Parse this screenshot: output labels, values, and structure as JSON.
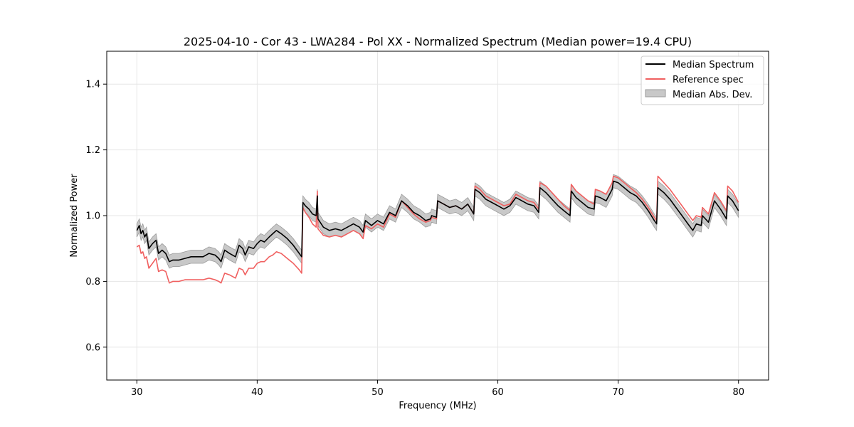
{
  "chart_data": {
    "type": "line",
    "title": "2025-04-10 - Cor 43 - LWA284 - Pol XX - Normalized Spectrum (Median power=19.4 CPU)",
    "xlabel": "Frequency (MHz)",
    "ylabel": "Normalized Power",
    "xlim": [
      27.5,
      82.5
    ],
    "ylim": [
      0.5,
      1.5
    ],
    "xticks": [
      30,
      40,
      50,
      60,
      70,
      80
    ],
    "yticks": [
      0.6,
      0.8,
      1.0,
      1.2,
      1.4
    ],
    "xtick_labels": [
      "30",
      "40",
      "50",
      "60",
      "70",
      "80"
    ],
    "ytick_labels": [
      "0.6",
      "0.8",
      "1.0",
      "1.2",
      "1.4"
    ],
    "grid": true,
    "legend_position": "top-right",
    "legend": [
      "Median Spectrum",
      "Reference spec",
      "Median Abs. Dev."
    ],
    "colors": {
      "median": "#000000",
      "reference": "#f06060",
      "mad_fill": "#c8c8c8",
      "mad_edge": "#9a9a9a",
      "grid": "#e6e6e6"
    },
    "series": [
      {
        "name": "Median Spectrum",
        "points": [
          [
            30.0,
            0.955
          ],
          [
            30.2,
            0.97
          ],
          [
            30.35,
            0.945
          ],
          [
            30.5,
            0.955
          ],
          [
            30.65,
            0.935
          ],
          [
            30.8,
            0.945
          ],
          [
            31.0,
            0.9
          ],
          [
            31.3,
            0.915
          ],
          [
            31.6,
            0.925
          ],
          [
            31.8,
            0.885
          ],
          [
            32.1,
            0.895
          ],
          [
            32.4,
            0.885
          ],
          [
            32.7,
            0.86
          ],
          [
            33.0,
            0.865
          ],
          [
            33.5,
            0.865
          ],
          [
            34.0,
            0.87
          ],
          [
            34.5,
            0.875
          ],
          [
            35.0,
            0.875
          ],
          [
            35.5,
            0.875
          ],
          [
            36.0,
            0.885
          ],
          [
            36.5,
            0.88
          ],
          [
            36.8,
            0.87
          ],
          [
            37.0,
            0.86
          ],
          [
            37.3,
            0.895
          ],
          [
            37.7,
            0.885
          ],
          [
            38.2,
            0.875
          ],
          [
            38.5,
            0.91
          ],
          [
            38.8,
            0.9
          ],
          [
            39.0,
            0.88
          ],
          [
            39.3,
            0.905
          ],
          [
            39.7,
            0.9
          ],
          [
            40.0,
            0.915
          ],
          [
            40.3,
            0.925
          ],
          [
            40.6,
            0.92
          ],
          [
            41.0,
            0.935
          ],
          [
            41.3,
            0.945
          ],
          [
            41.6,
            0.955
          ],
          [
            42.0,
            0.945
          ],
          [
            42.5,
            0.93
          ],
          [
            43.0,
            0.91
          ],
          [
            43.5,
            0.885
          ],
          [
            43.7,
            0.875
          ],
          [
            43.8,
            1.04
          ],
          [
            44.0,
            1.03
          ],
          [
            44.3,
            1.02
          ],
          [
            44.6,
            1.005
          ],
          [
            44.9,
            1.0
          ],
          [
            45.0,
            1.06
          ],
          [
            45.05,
            0.99
          ],
          [
            45.5,
            0.965
          ],
          [
            46.0,
            0.955
          ],
          [
            46.5,
            0.96
          ],
          [
            47.0,
            0.955
          ],
          [
            47.5,
            0.965
          ],
          [
            48.0,
            0.975
          ],
          [
            48.5,
            0.965
          ],
          [
            48.8,
            0.95
          ],
          [
            49.0,
            0.985
          ],
          [
            49.5,
            0.97
          ],
          [
            50.0,
            0.985
          ],
          [
            50.5,
            0.975
          ],
          [
            51.0,
            1.01
          ],
          [
            51.5,
            1.0
          ],
          [
            52.0,
            1.045
          ],
          [
            52.5,
            1.03
          ],
          [
            53.0,
            1.01
          ],
          [
            53.5,
            1.0
          ],
          [
            54.0,
            0.985
          ],
          [
            54.4,
            0.99
          ],
          [
            54.5,
            1.0
          ],
          [
            54.9,
            0.995
          ],
          [
            55.0,
            1.045
          ],
          [
            55.5,
            1.035
          ],
          [
            56.0,
            1.025
          ],
          [
            56.5,
            1.03
          ],
          [
            57.0,
            1.02
          ],
          [
            57.5,
            1.035
          ],
          [
            58.0,
            1.005
          ],
          [
            58.1,
            1.08
          ],
          [
            58.5,
            1.07
          ],
          [
            59.0,
            1.05
          ],
          [
            59.5,
            1.04
          ],
          [
            60.0,
            1.03
          ],
          [
            60.5,
            1.02
          ],
          [
            61.0,
            1.03
          ],
          [
            61.5,
            1.055
          ],
          [
            62.0,
            1.045
          ],
          [
            62.5,
            1.035
          ],
          [
            63.0,
            1.03
          ],
          [
            63.4,
            1.01
          ],
          [
            63.5,
            1.085
          ],
          [
            64.0,
            1.07
          ],
          [
            64.5,
            1.05
          ],
          [
            65.0,
            1.03
          ],
          [
            65.5,
            1.015
          ],
          [
            66.0,
            1.0
          ],
          [
            66.1,
            1.075
          ],
          [
            66.5,
            1.055
          ],
          [
            67.0,
            1.04
          ],
          [
            67.5,
            1.025
          ],
          [
            68.0,
            1.02
          ],
          [
            68.1,
            1.06
          ],
          [
            68.5,
            1.055
          ],
          [
            69.0,
            1.045
          ],
          [
            69.5,
            1.08
          ],
          [
            69.6,
            1.105
          ],
          [
            70.0,
            1.1
          ],
          [
            70.5,
            1.085
          ],
          [
            71.0,
            1.07
          ],
          [
            71.5,
            1.06
          ],
          [
            72.0,
            1.04
          ],
          [
            72.5,
            1.015
          ],
          [
            73.0,
            0.985
          ],
          [
            73.2,
            0.975
          ],
          [
            73.3,
            1.085
          ],
          [
            73.8,
            1.07
          ],
          [
            74.3,
            1.05
          ],
          [
            74.8,
            1.025
          ],
          [
            75.3,
            1.0
          ],
          [
            75.8,
            0.975
          ],
          [
            76.2,
            0.955
          ],
          [
            76.5,
            0.975
          ],
          [
            76.9,
            0.97
          ],
          [
            77.0,
            1.0
          ],
          [
            77.5,
            0.98
          ],
          [
            78.0,
            1.045
          ],
          [
            78.5,
            1.02
          ],
          [
            79.0,
            0.99
          ],
          [
            79.1,
            1.06
          ],
          [
            79.5,
            1.045
          ],
          [
            80.0,
            1.015
          ]
        ]
      },
      {
        "name": "Reference spec",
        "points": [
          [
            30.0,
            0.905
          ],
          [
            30.2,
            0.91
          ],
          [
            30.35,
            0.885
          ],
          [
            30.5,
            0.89
          ],
          [
            30.65,
            0.87
          ],
          [
            30.8,
            0.875
          ],
          [
            31.0,
            0.84
          ],
          [
            31.3,
            0.855
          ],
          [
            31.6,
            0.87
          ],
          [
            31.8,
            0.83
          ],
          [
            32.1,
            0.835
          ],
          [
            32.4,
            0.83
          ],
          [
            32.7,
            0.795
          ],
          [
            33.0,
            0.8
          ],
          [
            33.5,
            0.8
          ],
          [
            34.0,
            0.805
          ],
          [
            34.5,
            0.805
          ],
          [
            35.0,
            0.805
          ],
          [
            35.5,
            0.805
          ],
          [
            36.0,
            0.81
          ],
          [
            36.5,
            0.805
          ],
          [
            36.8,
            0.8
          ],
          [
            37.0,
            0.795
          ],
          [
            37.3,
            0.825
          ],
          [
            37.7,
            0.82
          ],
          [
            38.2,
            0.81
          ],
          [
            38.5,
            0.84
          ],
          [
            38.8,
            0.835
          ],
          [
            39.0,
            0.82
          ],
          [
            39.3,
            0.84
          ],
          [
            39.7,
            0.84
          ],
          [
            40.0,
            0.855
          ],
          [
            40.3,
            0.86
          ],
          [
            40.6,
            0.86
          ],
          [
            41.0,
            0.875
          ],
          [
            41.3,
            0.88
          ],
          [
            41.6,
            0.89
          ],
          [
            42.0,
            0.885
          ],
          [
            42.5,
            0.87
          ],
          [
            43.0,
            0.855
          ],
          [
            43.5,
            0.835
          ],
          [
            43.7,
            0.825
          ],
          [
            43.8,
            1.025
          ],
          [
            44.0,
            1.01
          ],
          [
            44.3,
            0.995
          ],
          [
            44.6,
            0.975
          ],
          [
            44.9,
            0.965
          ],
          [
            45.0,
            1.075
          ],
          [
            45.05,
            0.96
          ],
          [
            45.5,
            0.94
          ],
          [
            46.0,
            0.935
          ],
          [
            46.5,
            0.94
          ],
          [
            47.0,
            0.935
          ],
          [
            47.5,
            0.945
          ],
          [
            48.0,
            0.955
          ],
          [
            48.5,
            0.945
          ],
          [
            48.8,
            0.93
          ],
          [
            49.0,
            0.97
          ],
          [
            49.5,
            0.96
          ],
          [
            50.0,
            0.975
          ],
          [
            50.5,
            0.965
          ],
          [
            51.0,
            1.005
          ],
          [
            51.5,
            0.995
          ],
          [
            52.0,
            1.045
          ],
          [
            52.5,
            1.025
          ],
          [
            53.0,
            1.005
          ],
          [
            53.5,
            0.99
          ],
          [
            54.0,
            0.98
          ],
          [
            54.4,
            0.985
          ],
          [
            54.5,
            0.995
          ],
          [
            54.9,
            0.99
          ],
          [
            55.0,
            1.045
          ],
          [
            55.5,
            1.035
          ],
          [
            56.0,
            1.025
          ],
          [
            56.5,
            1.03
          ],
          [
            57.0,
            1.02
          ],
          [
            57.5,
            1.035
          ],
          [
            58.0,
            1.005
          ],
          [
            58.1,
            1.09
          ],
          [
            58.5,
            1.08
          ],
          [
            59.0,
            1.06
          ],
          [
            59.5,
            1.05
          ],
          [
            60.0,
            1.04
          ],
          [
            60.5,
            1.03
          ],
          [
            61.0,
            1.035
          ],
          [
            61.5,
            1.065
          ],
          [
            62.0,
            1.055
          ],
          [
            62.5,
            1.045
          ],
          [
            63.0,
            1.04
          ],
          [
            63.4,
            1.02
          ],
          [
            63.5,
            1.1
          ],
          [
            64.0,
            1.09
          ],
          [
            64.5,
            1.07
          ],
          [
            65.0,
            1.05
          ],
          [
            65.5,
            1.03
          ],
          [
            66.0,
            1.015
          ],
          [
            66.1,
            1.095
          ],
          [
            66.5,
            1.075
          ],
          [
            67.0,
            1.06
          ],
          [
            67.5,
            1.045
          ],
          [
            68.0,
            1.035
          ],
          [
            68.1,
            1.08
          ],
          [
            68.5,
            1.075
          ],
          [
            69.0,
            1.065
          ],
          [
            69.5,
            1.1
          ],
          [
            69.6,
            1.12
          ],
          [
            70.0,
            1.115
          ],
          [
            70.5,
            1.1
          ],
          [
            71.0,
            1.085
          ],
          [
            71.5,
            1.07
          ],
          [
            72.0,
            1.05
          ],
          [
            72.5,
            1.025
          ],
          [
            73.0,
            0.995
          ],
          [
            73.2,
            0.985
          ],
          [
            73.3,
            1.12
          ],
          [
            73.8,
            1.1
          ],
          [
            74.3,
            1.08
          ],
          [
            74.8,
            1.055
          ],
          [
            75.3,
            1.03
          ],
          [
            75.8,
            1.005
          ],
          [
            76.2,
            0.985
          ],
          [
            76.5,
            1.0
          ],
          [
            76.9,
            0.995
          ],
          [
            77.0,
            1.025
          ],
          [
            77.5,
            1.005
          ],
          [
            78.0,
            1.07
          ],
          [
            78.5,
            1.045
          ],
          [
            79.0,
            1.015
          ],
          [
            79.1,
            1.09
          ],
          [
            79.5,
            1.075
          ],
          [
            80.0,
            1.04
          ]
        ]
      },
      {
        "name": "Median Abs. Dev.",
        "description": "band half-width around Median Spectrum",
        "half_width": 0.02
      }
    ]
  }
}
